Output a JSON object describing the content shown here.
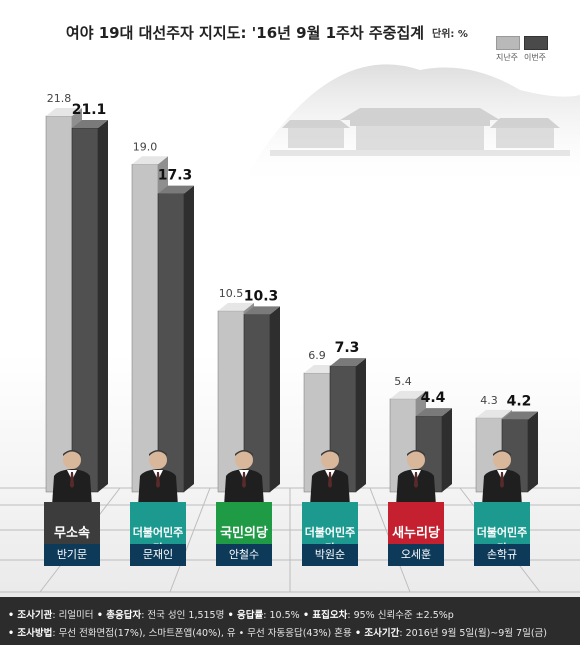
{
  "title": "여야 19대 대선주자 지지도: '16년 9월 1주차 주중집계",
  "unit_label": "단위: %",
  "legend": [
    {
      "label": "지난주",
      "color": "#b9b9b9"
    },
    {
      "label": "이번주",
      "color": "#4a4a4a"
    }
  ],
  "chart_data": {
    "type": "bar",
    "categories": [
      "반기문",
      "문재인",
      "안철수",
      "박원순",
      "오세훈",
      "손학규"
    ],
    "series": [
      {
        "name": "지난주",
        "values": [
          21.8,
          19.0,
          10.5,
          6.9,
          5.4,
          4.3
        ],
        "labels": [
          "21.8",
          "19.0",
          "10.5",
          "6.9",
          "5.4",
          "4.3"
        ]
      },
      {
        "name": "이번주",
        "values": [
          21.1,
          17.3,
          10.3,
          7.3,
          4.4,
          4.2
        ],
        "labels": [
          "21.1",
          "17.3",
          "10.3",
          "7.3",
          "4.4",
          "4.2"
        ]
      }
    ],
    "title": "여야 19대 대선주자 지지도: '16년 9월 1주차 주중집계",
    "xlabel": "",
    "ylabel": "",
    "ylim": [
      0,
      25
    ]
  },
  "candidates": [
    {
      "name": "반기문",
      "party": "무소속",
      "party_color": "#3c3c3c"
    },
    {
      "name": "문재인",
      "party": "더불어민주당",
      "party_color": "#1d9a90"
    },
    {
      "name": "안철수",
      "party": "국민의당",
      "party_color": "#1f9a45"
    },
    {
      "name": "박원순",
      "party": "더불어민주당",
      "party_color": "#1d9a90"
    },
    {
      "name": "오세훈",
      "party": "새누리당",
      "party_color": "#c4202f"
    },
    {
      "name": "손학규",
      "party": "더불어민주당",
      "party_color": "#1d9a90"
    }
  ],
  "footer": {
    "line1": [
      {
        "key": "• 조사기관",
        "value": ": 리얼미터"
      },
      {
        "key": " • 총응답자",
        "value": ": 전국 성인 1,515명"
      },
      {
        "key": " • 응답률",
        "value": ": 10.5%"
      },
      {
        "key": " • 표집오차",
        "value": ": 95% 신뢰수준 ±2.5%p"
      }
    ],
    "line2": [
      {
        "key": "• 조사방법",
        "value": ": 무선 전화면접(17%), 스마트폰앱(40%), 유 • 무선 자동응답(43%) 혼용"
      },
      {
        "key": " • 조사기간",
        "value": ": 2016년 9월 5일(월)~9월 7일(금)"
      }
    ]
  }
}
